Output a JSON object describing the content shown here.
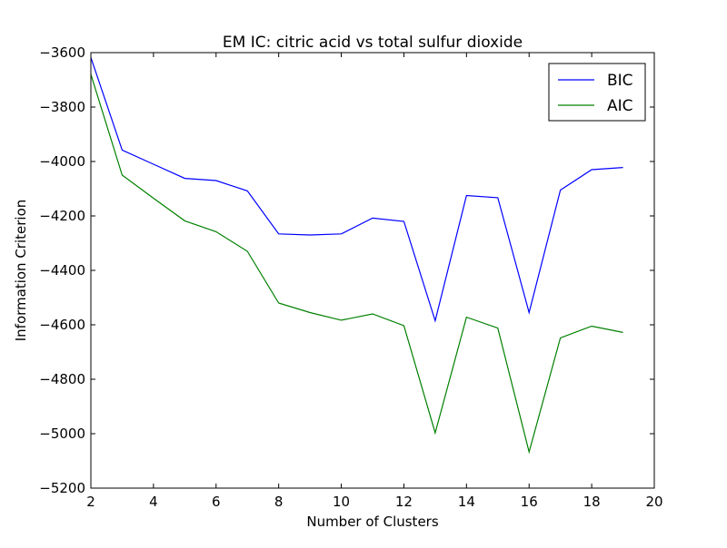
{
  "chart_data": {
    "type": "line",
    "title": "EM IC: citric acid vs total sulfur dioxide",
    "xlabel": "Number of Clusters",
    "ylabel": "Information Criterion",
    "xlim": [
      2,
      20
    ],
    "ylim": [
      -5200,
      -3600
    ],
    "xticks": [
      2,
      4,
      6,
      8,
      10,
      12,
      14,
      16,
      18,
      20
    ],
    "yticks": [
      -3600,
      -3800,
      -4000,
      -4200,
      -4400,
      -4600,
      -4800,
      -5000,
      -5200
    ],
    "xtick_labels": [
      "2",
      "4",
      "6",
      "8",
      "10",
      "12",
      "14",
      "16",
      "18",
      "20"
    ],
    "ytick_labels": [
      "−3600",
      "−3800",
      "−4000",
      "−4200",
      "−4400",
      "−4600",
      "−4800",
      "−5000",
      "−5200"
    ],
    "grid": false,
    "legend_position": "top-right",
    "x": [
      2,
      3,
      4,
      5,
      6,
      7,
      8,
      9,
      10,
      11,
      12,
      13,
      14,
      15,
      16,
      17,
      18,
      19
    ],
    "series": [
      {
        "name": "BIC",
        "color": "#0000ff",
        "values": [
          -3618,
          -3958,
          -4010,
          -4062,
          -4070,
          -4108,
          -4266,
          -4270,
          -4266,
          -4208,
          -4220,
          -4585,
          -4125,
          -4133,
          -4555,
          -4105,
          -4030,
          -4022
        ]
      },
      {
        "name": "AIC",
        "color": "#008000",
        "values": [
          -3680,
          -4050,
          -4135,
          -4218,
          -4258,
          -4330,
          -4520,
          -4555,
          -4583,
          -4560,
          -4603,
          -4997,
          -4572,
          -4612,
          -5067,
          -4648,
          -4605,
          -4628
        ]
      }
    ]
  }
}
